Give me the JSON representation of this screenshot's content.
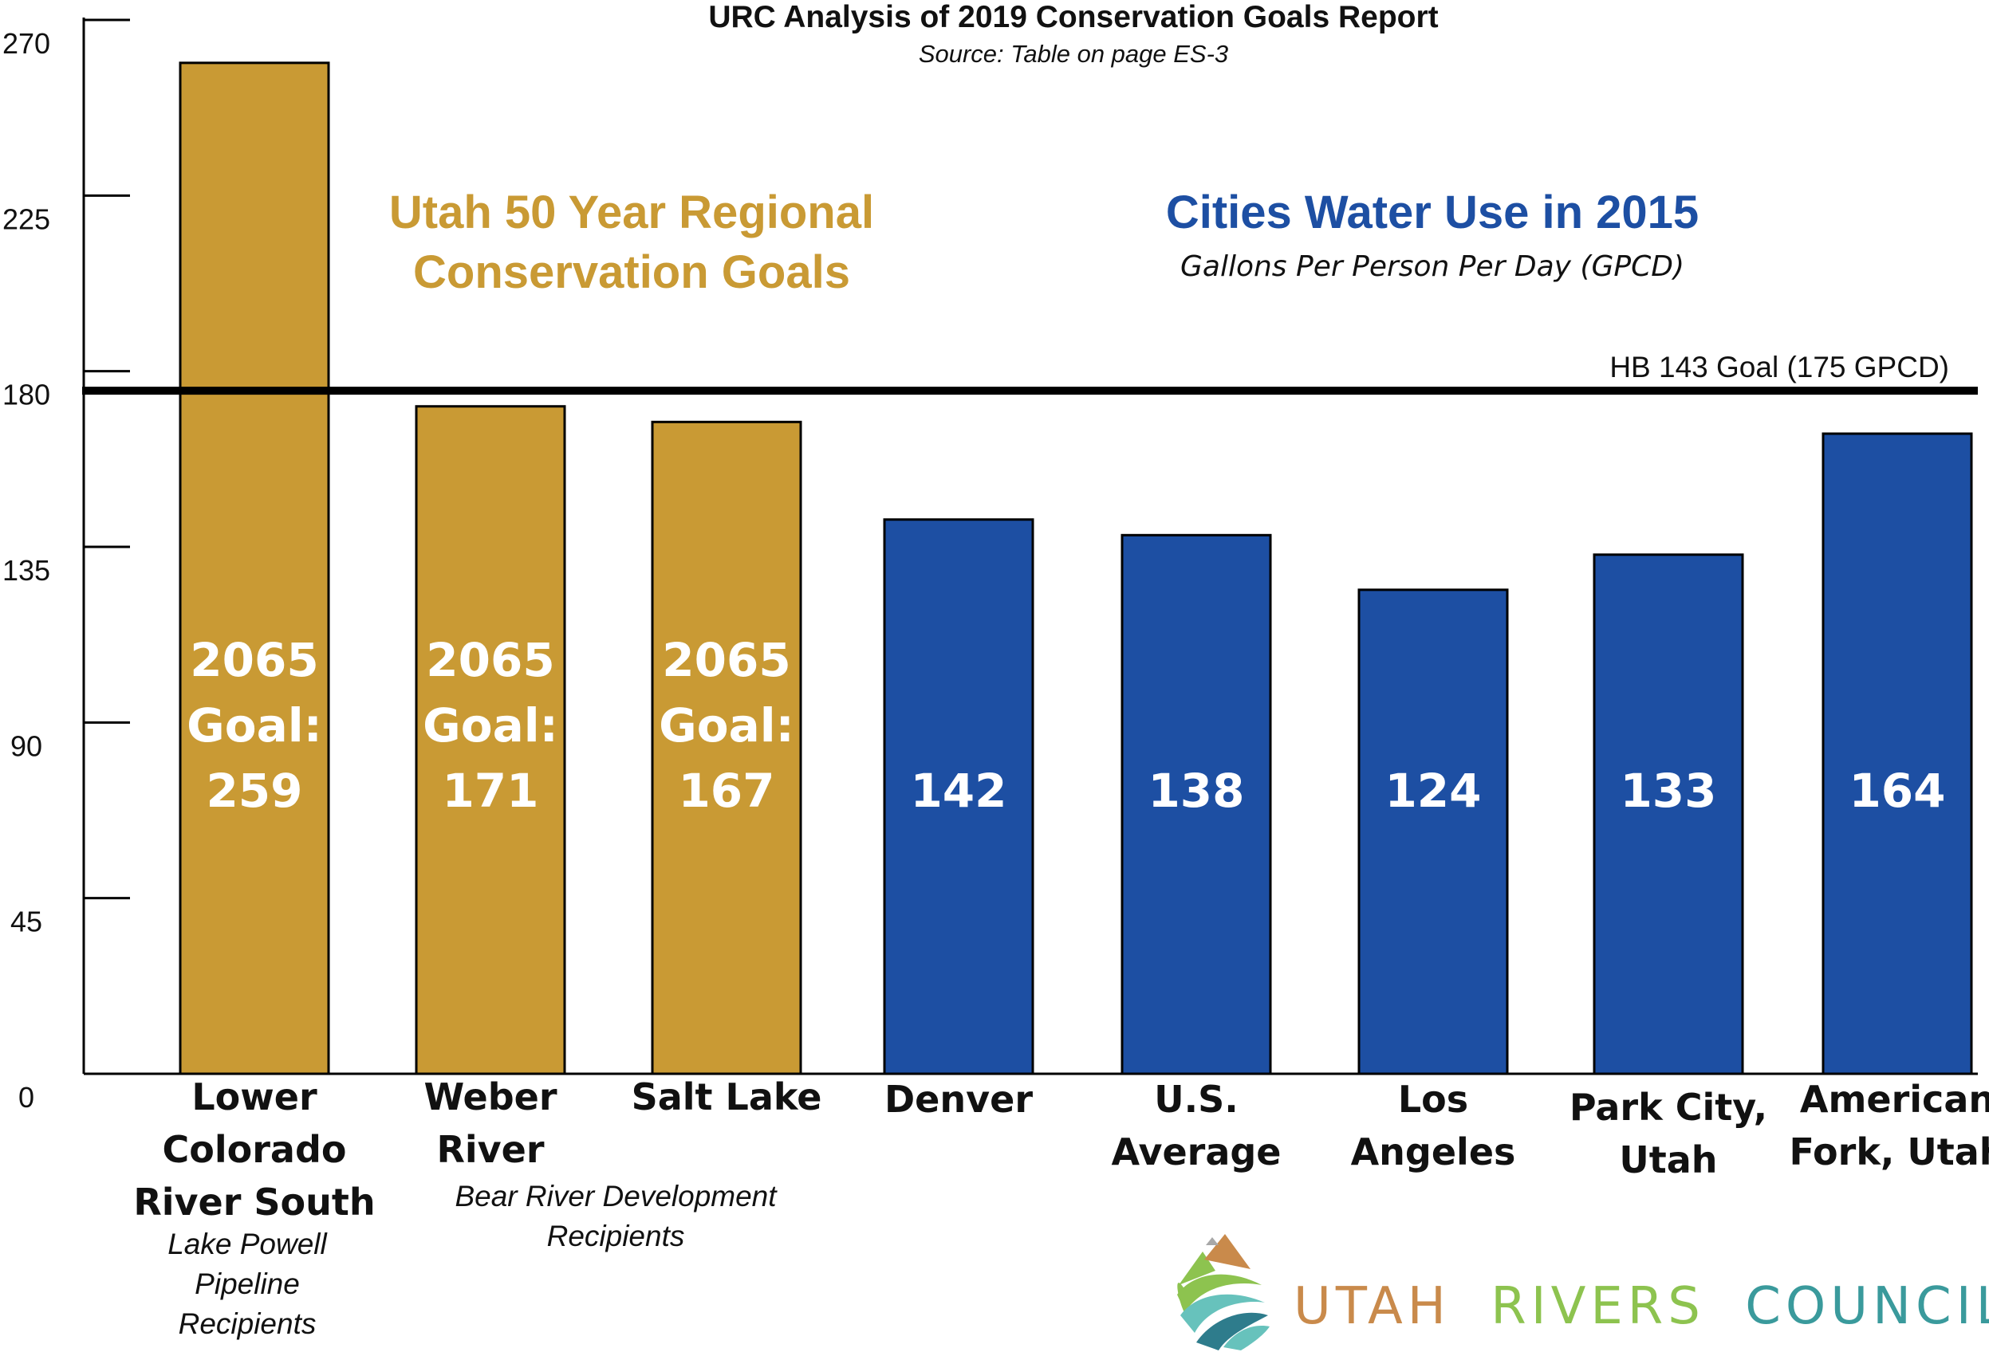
{
  "chart_data": {
    "type": "bar",
    "title": "URC Analysis of 2019 Conservation Goals Report",
    "subtitle": "Source: Table on page ES-3",
    "ylim": [
      0,
      270
    ],
    "yticks": [
      0,
      45,
      90,
      135,
      180,
      225,
      270
    ],
    "yticks_labels": [
      "0",
      "45",
      "90",
      "135",
      "180",
      "225",
      "270"
    ],
    "reference_line": {
      "value": 175,
      "label": "HB 143 Goal (175 GPCD)"
    },
    "groups": [
      {
        "name": "goals",
        "heading": [
          "Utah 50 Year Regional",
          "Conservation Goals"
        ],
        "color": "#C99A34"
      },
      {
        "name": "cities",
        "heading": [
          "Cities Water Use in 2015"
        ],
        "subheading": "Gallons Per Person Per Day (GPCD)",
        "color": "#1D4FA3"
      }
    ],
    "bars": [
      {
        "label_lines": [
          "Lower",
          "Colorado",
          "River South"
        ],
        "value": 259,
        "group": "goals",
        "value_lines": [
          "2065",
          "Goal:",
          "259"
        ]
      },
      {
        "label_lines": [
          "Weber",
          "River"
        ],
        "value": 171,
        "group": "goals",
        "value_lines": [
          "2065",
          "Goal:",
          "171"
        ]
      },
      {
        "label_lines": [
          "Salt Lake"
        ],
        "value": 167,
        "group": "goals",
        "value_lines": [
          "2065",
          "Goal:",
          "167"
        ]
      },
      {
        "label_lines": [
          "Denver"
        ],
        "value": 142,
        "group": "cities",
        "value_lines": [
          "142"
        ]
      },
      {
        "label_lines": [
          "U.S.",
          "Average"
        ],
        "value": 138,
        "group": "cities",
        "value_lines": [
          "138"
        ]
      },
      {
        "label_lines": [
          "Los",
          "Angeles"
        ],
        "value": 124,
        "group": "cities",
        "value_lines": [
          "124"
        ]
      },
      {
        "label_lines": [
          "Park City,",
          "Utah"
        ],
        "value": 133,
        "group": "cities",
        "value_lines": [
          "133"
        ]
      },
      {
        "label_lines": [
          "American",
          "Fork, Utah"
        ],
        "value": 164,
        "group": "cities",
        "value_lines": [
          "164"
        ]
      }
    ],
    "notes": [
      {
        "for_bar": 0,
        "lines": [
          "Lake Powell",
          "Pipeline",
          "Recipients"
        ]
      },
      {
        "for_bars": [
          1,
          2
        ],
        "lines": [
          "Bear River Development",
          "Recipients"
        ]
      }
    ]
  },
  "logo": {
    "word1": "UTAH",
    "word2": "RIVERS",
    "word3": "COUNCIL",
    "colors": {
      "word1": "#C98A4B",
      "word2": "#8DC34F",
      "word3": "#3A9A9C"
    }
  }
}
